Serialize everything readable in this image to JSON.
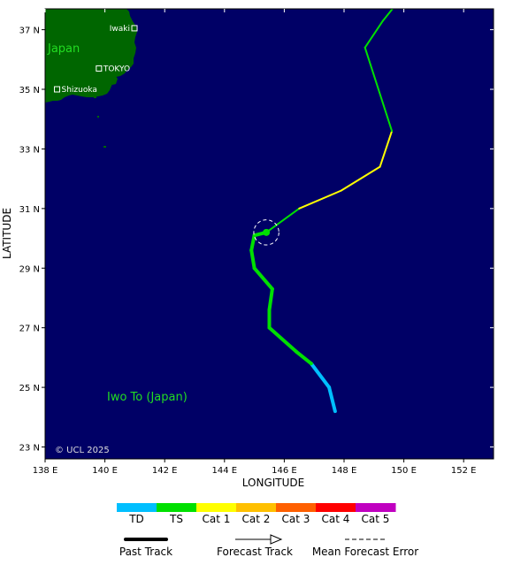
{
  "axes": {
    "xlabel": "LONGITUDE",
    "ylabel": "LATITUDE",
    "lon_range": [
      138,
      153
    ],
    "lat_range": [
      22.6,
      37.7
    ],
    "lon_ticks": [
      {
        "value": 138,
        "label": "138 E"
      },
      {
        "value": 140,
        "label": "140 E"
      },
      {
        "value": 142,
        "label": "142 E"
      },
      {
        "value": 144,
        "label": "144 E"
      },
      {
        "value": 146,
        "label": "146 E"
      },
      {
        "value": 148,
        "label": "148 E"
      },
      {
        "value": 150,
        "label": "150 E"
      },
      {
        "value": 152,
        "label": "152 E"
      }
    ],
    "lat_ticks": [
      {
        "value": 37,
        "label": "37 N"
      },
      {
        "value": 35,
        "label": "35 N"
      },
      {
        "value": 33,
        "label": "33 N"
      },
      {
        "value": 31,
        "label": "31 N"
      },
      {
        "value": 29,
        "label": "29 N"
      },
      {
        "value": 27,
        "label": "27 N"
      },
      {
        "value": 25,
        "label": "25 N"
      },
      {
        "value": 23,
        "label": "23 N"
      }
    ]
  },
  "colors": {
    "ocean": "#000066",
    "land": "#006600",
    "TD": "#00bfff",
    "TS": "#00e000",
    "Cat 1": "#ffff00",
    "Cat 2": "#ffc000",
    "Cat 3": "#ff6000",
    "Cat 4": "#ff0000",
    "Cat 5": "#c000c0"
  },
  "map": {
    "region_label": "Japan",
    "island_label": "Iwo To (Japan)",
    "copyright": "© UCL 2025",
    "cities": [
      {
        "name": "Iwaki",
        "lon": 140.9,
        "lat": 37.05
      },
      {
        "name": "TOKYO",
        "lon": 139.8,
        "lat": 35.7
      },
      {
        "name": "Shizuoka",
        "lon": 138.4,
        "lat": 35.0
      }
    ]
  },
  "track": {
    "past": [
      {
        "lon": 147.7,
        "lat": 24.2,
        "cat": "TD"
      },
      {
        "lon": 147.5,
        "lat": 25.0,
        "cat": "TD"
      },
      {
        "lon": 146.9,
        "lat": 25.8,
        "cat": "TD"
      },
      {
        "lon": 146.4,
        "lat": 26.2,
        "cat": "TS"
      },
      {
        "lon": 145.5,
        "lat": 27.0,
        "cat": "TS"
      },
      {
        "lon": 145.5,
        "lat": 27.6,
        "cat": "TS"
      },
      {
        "lon": 145.6,
        "lat": 28.3,
        "cat": "TS"
      },
      {
        "lon": 145.0,
        "lat": 29.0,
        "cat": "TS"
      },
      {
        "lon": 144.9,
        "lat": 29.6,
        "cat": "TS"
      },
      {
        "lon": 145.0,
        "lat": 30.1,
        "cat": "TS"
      },
      {
        "lon": 145.4,
        "lat": 30.2,
        "cat": "TS"
      }
    ],
    "forecast": [
      {
        "lon": 145.4,
        "lat": 30.2,
        "cat": "TS"
      },
      {
        "lon": 146.5,
        "lat": 31.0,
        "cat": "TS"
      },
      {
        "lon": 147.9,
        "lat": 31.6,
        "cat": "Cat 1"
      },
      {
        "lon": 149.2,
        "lat": 32.4,
        "cat": "Cat 1"
      },
      {
        "lon": 149.6,
        "lat": 33.6,
        "cat": "Cat 1"
      },
      {
        "lon": 148.7,
        "lat": 36.4,
        "cat": "TS"
      },
      {
        "lon": 149.3,
        "lat": 37.3,
        "cat": "TS"
      },
      {
        "lon": 149.7,
        "lat": 37.8,
        "cat": "TS"
      }
    ],
    "current": {
      "lon": 145.4,
      "lat": 30.2,
      "error_radius_deg": 0.42
    }
  },
  "legend": {
    "categories": [
      "TD",
      "TS",
      "Cat 1",
      "Cat 2",
      "Cat 3",
      "Cat 4",
      "Cat 5"
    ],
    "past_track_label": "Past Track",
    "forecast_track_label": "Forecast Track",
    "error_label": "Mean Forecast Error"
  }
}
